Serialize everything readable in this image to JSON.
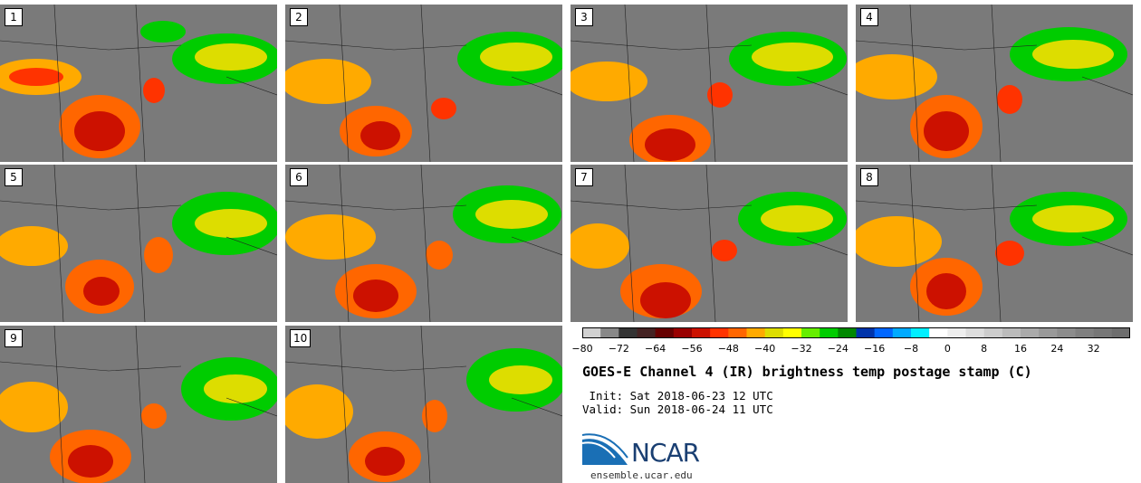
{
  "panels": [
    {
      "label": "1"
    },
    {
      "label": "2"
    },
    {
      "label": "3"
    },
    {
      "label": "4"
    },
    {
      "label": "5"
    },
    {
      "label": "6"
    },
    {
      "label": "7"
    },
    {
      "label": "8"
    },
    {
      "label": "9"
    },
    {
      "label": "10"
    }
  ],
  "colorbar": {
    "ticks": [
      "−80",
      "−72",
      "−64",
      "−56",
      "−48",
      "−40",
      "−32",
      "−24",
      "−16",
      "−8",
      "0",
      "8",
      "16",
      "24",
      "32"
    ],
    "tick_values": [
      -80,
      -72,
      -64,
      -56,
      -48,
      -40,
      -32,
      -24,
      -16,
      -8,
      0,
      8,
      16,
      24,
      32
    ],
    "range": [
      -80,
      40
    ],
    "colors": [
      "#d0d0d0",
      "#888888",
      "#333333",
      "#442222",
      "#660000",
      "#990000",
      "#cc1100",
      "#ff3300",
      "#ff6600",
      "#ffaa00",
      "#dddd00",
      "#ffff00",
      "#66ee00",
      "#00cc00",
      "#008800",
      "#0033aa",
      "#0066ff",
      "#00aaff",
      "#00eeff",
      "#ffffff",
      "#eeeeee",
      "#dddddd",
      "#cccccc",
      "#bbbbbb",
      "#aaaaaa",
      "#999999",
      "#8c8c8c",
      "#808080",
      "#777777",
      "#6e6e6e"
    ]
  },
  "title": "GOES-E Channel 4 (IR) brightness temp postage stamp (C)",
  "init": " Init: Sat 2018-06-23 12 UTC",
  "valid": "Valid: Sun 2018-06-24 11 UTC",
  "logo": {
    "text": "NCAR",
    "url": "ensemble.ucar.edu"
  }
}
